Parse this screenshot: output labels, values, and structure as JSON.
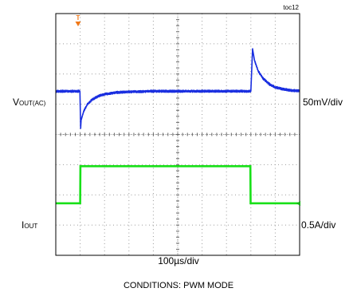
{
  "figure_id": "toc12",
  "conditions": "CONDITIONS:  PWM MODE",
  "colors": {
    "background": "#ffffff",
    "grid_border": "#000000",
    "grid_dots": "#9a9a9a",
    "vout_trace": "#1a2fe0",
    "iout_trace": "#18e018",
    "trigger_marker": "#f07818",
    "iout_marker": "#18b018"
  },
  "chart_data": {
    "type": "line",
    "title": "",
    "xlabel": "100µs/div",
    "ylabel": "",
    "grid": true,
    "divisions": {
      "x": 10,
      "y": 8
    },
    "time_per_div_us": 100,
    "xlim_us": [
      0,
      1000
    ],
    "trigger_marker": "T",
    "series": [
      {
        "name_main": "V",
        "name_sub": "OUT(AC)",
        "scale_label": "50mV/div",
        "ref_div": 1.43,
        "ylim_div": [
          0,
          8
        ],
        "points_div": [
          [
            0,
            1.43
          ],
          [
            95,
            1.43
          ],
          [
            99,
            1.43
          ],
          [
            102,
            0.2
          ],
          [
            104,
            0.48
          ],
          [
            115,
            0.78
          ],
          [
            130,
            1.0
          ],
          [
            150,
            1.16
          ],
          [
            175,
            1.27
          ],
          [
            200,
            1.33
          ],
          [
            250,
            1.39
          ],
          [
            300,
            1.41
          ],
          [
            400,
            1.43
          ],
          [
            790,
            1.43
          ],
          [
            800,
            1.43
          ],
          [
            807,
            2.83
          ],
          [
            815,
            2.45
          ],
          [
            830,
            2.1
          ],
          [
            850,
            1.85
          ],
          [
            875,
            1.67
          ],
          [
            900,
            1.56
          ],
          [
            930,
            1.5
          ],
          [
            960,
            1.46
          ],
          [
            1000,
            1.44
          ]
        ],
        "noise_div": 0.11
      },
      {
        "name_main": "I",
        "name_sub": "OUT",
        "scale_label": "0.5A/div",
        "ref_div": -2.28,
        "ylim_div": [
          0,
          8
        ],
        "points_div": [
          [
            0,
            -2.28
          ],
          [
            100,
            -2.28
          ],
          [
            101,
            -1.05
          ],
          [
            798,
            -1.05
          ],
          [
            799,
            -2.28
          ],
          [
            1000,
            -2.28
          ]
        ],
        "noise_div": 0
      }
    ]
  }
}
